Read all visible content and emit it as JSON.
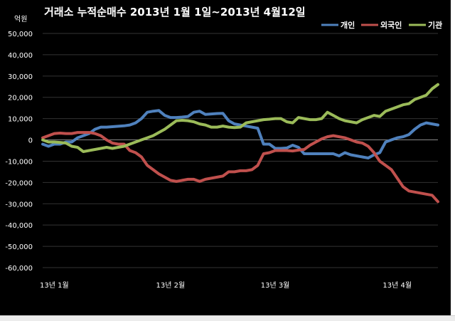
{
  "chart_data": {
    "type": "line",
    "title": "거래소 누적순매수 2013년 1월 1일~2013년 4월12일",
    "ylabel": "억원",
    "xlabel": "",
    "ylim": [
      -60000,
      50000
    ],
    "yticks": [
      50000,
      40000,
      30000,
      20000,
      10000,
      0,
      -10000,
      -20000,
      -30000,
      -40000,
      -50000,
      -60000
    ],
    "ytick_labels": [
      "50,000",
      "40,000",
      "30,000",
      "20,000",
      "10,000",
      "0",
      "-10,000",
      "-20,000",
      "-30,000",
      "-40,000",
      "-50,000",
      "-60,000"
    ],
    "xlim": [
      0,
      68
    ],
    "xticks": [
      {
        "x": 2,
        "label": "13년 1월"
      },
      {
        "x": 22,
        "label": "13년 2월"
      },
      {
        "x": 40,
        "label": "13년 3월"
      },
      {
        "x": 61,
        "label": "13년 4월"
      }
    ],
    "grid": true,
    "legend_position": "top-right",
    "series": [
      {
        "name": "개인",
        "color": "#4f81bd",
        "values": [
          -2000,
          -3000,
          -2000,
          -2000,
          -1000,
          -1000,
          1000,
          2000,
          3000,
          5000,
          6000,
          6000,
          6200,
          6400,
          6600,
          7000,
          8000,
          10000,
          13000,
          13500,
          13800,
          11500,
          10500,
          10500,
          10700,
          11000,
          13000,
          13500,
          12000,
          12200,
          12400,
          12500,
          9000,
          7500,
          7000,
          6500,
          6000,
          5500,
          -2000,
          -2000,
          -4000,
          -4000,
          -3800,
          -2500,
          -3500,
          -6500,
          -6500,
          -6500,
          -6500,
          -6500,
          -6500,
          -7500,
          -6000,
          -7000,
          -7500,
          -8000,
          -8500,
          -7000,
          -6000,
          -1000,
          0,
          1000,
          1500,
          2500,
          5000,
          7000,
          8000,
          7500,
          7000
        ]
      },
      {
        "name": "외국인",
        "color": "#c0504d",
        "values": [
          1000,
          2000,
          3000,
          3200,
          3000,
          3000,
          3500,
          3500,
          3500,
          3000,
          2000,
          0,
          -1500,
          -2000,
          -2000,
          -5000,
          -6000,
          -8000,
          -12000,
          -14000,
          -16000,
          -17500,
          -19000,
          -19500,
          -19000,
          -18500,
          -18500,
          -19500,
          -18500,
          -18000,
          -17500,
          -17000,
          -15000,
          -15000,
          -14500,
          -14500,
          -14000,
          -12000,
          -6500,
          -6000,
          -5000,
          -5000,
          -5000,
          -5200,
          -4800,
          -4500,
          -2500,
          -1000,
          500,
          1500,
          2000,
          1500,
          1000,
          0,
          -1000,
          -1500,
          -3000,
          -6000,
          -10000,
          -12000,
          -14000,
          -18000,
          -22000,
          -24000,
          -24500,
          -25000,
          -25500,
          -26000,
          -29000
        ]
      },
      {
        "name": "기관",
        "color": "#9bbb59",
        "values": [
          0,
          -1000,
          -1000,
          -1200,
          -1500,
          -3000,
          -3500,
          -5500,
          -5000,
          -4500,
          -4000,
          -3500,
          -4000,
          -3500,
          -3000,
          -2000,
          -1000,
          0,
          1000,
          2000,
          3500,
          5000,
          7000,
          9000,
          9200,
          9000,
          8500,
          7500,
          7000,
          6000,
          6000,
          6500,
          6000,
          5800,
          6000,
          8000,
          8500,
          9000,
          9500,
          9700,
          10000,
          10000,
          8500,
          8000,
          10500,
          10000,
          9500,
          9500,
          10000,
          13000,
          11500,
          10000,
          9000,
          8500,
          8000,
          9500,
          10500,
          11500,
          11000,
          13500,
          14500,
          15500,
          16500,
          17000,
          19000,
          20000,
          21000,
          24000,
          26000
        ]
      }
    ]
  }
}
